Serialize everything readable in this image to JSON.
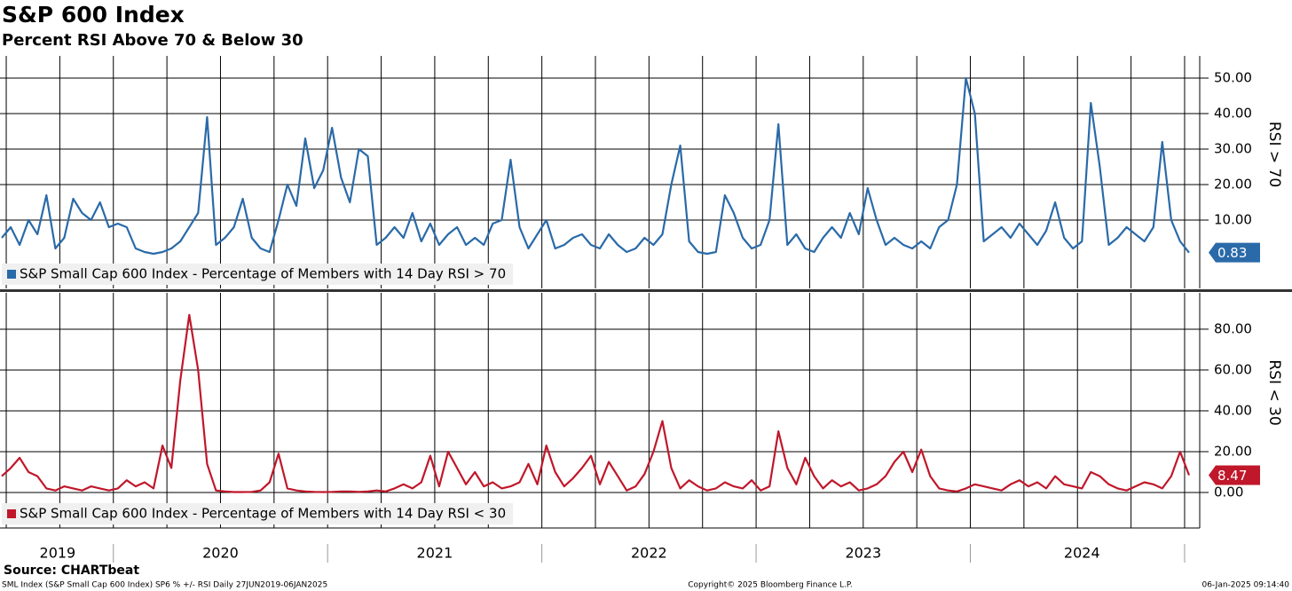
{
  "chart_data": [
    {
      "type": "line",
      "title": "S&P 600 Index",
      "subtitle": "Percent RSI Above 70 & Below 30",
      "y_label": "RSI > 70",
      "series": [
        {
          "name": "S&P Small Cap 600 Index - Percentage of Members with 14 Day RSI > 70",
          "color": "#2a6aa8",
          "values": [
            5,
            8,
            3,
            10,
            6,
            17,
            2,
            5,
            16,
            12,
            10,
            15,
            8,
            9,
            8,
            2,
            1,
            0.5,
            1,
            2,
            4,
            8,
            12,
            39,
            3,
            5,
            8,
            16,
            5,
            2,
            1,
            10,
            20,
            14,
            33,
            19,
            24,
            36,
            22,
            15,
            30,
            28,
            3,
            5,
            8,
            5,
            12,
            4,
            9,
            3,
            6,
            8,
            3,
            5,
            3,
            9,
            10,
            27,
            8,
            2,
            6,
            10,
            2,
            3,
            5,
            6,
            3,
            2,
            6,
            3,
            1,
            2,
            5,
            3,
            6,
            20,
            31,
            4,
            1,
            0.5,
            1,
            17,
            12,
            5,
            2,
            3,
            10,
            37,
            3,
            6,
            2,
            1,
            5,
            8,
            5,
            12,
            6,
            19,
            10,
            3,
            5,
            3,
            2,
            4,
            2,
            8,
            10,
            20,
            50,
            40,
            4,
            6,
            8,
            5,
            9,
            6,
            3,
            7,
            15,
            5,
            2,
            4,
            43,
            25,
            3,
            5,
            8,
            6,
            4,
            8,
            32,
            10,
            4,
            0.83
          ]
        }
      ],
      "ylim": [
        -9.25,
        56.25
      ],
      "yticks": [
        {
          "value": 10,
          "label": "10.00"
        },
        {
          "value": 20,
          "label": "20.00"
        },
        {
          "value": 30,
          "label": "30.00"
        },
        {
          "value": 40,
          "label": "40.00"
        },
        {
          "value": 50,
          "label": "50.00"
        }
      ],
      "grid": true
    },
    {
      "type": "line",
      "y_label": "RSI < 30",
      "categories": [
        "2019",
        null,
        null,
        null,
        null,
        null,
        null,
        null,
        null,
        null,
        null,
        null,
        null,
        "2020",
        null,
        null,
        null,
        null,
        null,
        null,
        null,
        null,
        null,
        null,
        null,
        null,
        null,
        null,
        null,
        null,
        null,
        null,
        null,
        null,
        null,
        null,
        null,
        "2021",
        null,
        null,
        null,
        null,
        null,
        null,
        null,
        null,
        null,
        null,
        null,
        null,
        null,
        null,
        null,
        null,
        null,
        null,
        null,
        null,
        null,
        null,
        null,
        "2022",
        null,
        null,
        null,
        null,
        null,
        null,
        null,
        null,
        null,
        null,
        null,
        null,
        null,
        null,
        null,
        null,
        null,
        null,
        null,
        null,
        null,
        null,
        null,
        "2023",
        null,
        null,
        null,
        null,
        null,
        null,
        null,
        null,
        null,
        null,
        null,
        null,
        null,
        null,
        null,
        null,
        null,
        null,
        null,
        null,
        null,
        null,
        null,
        "2024",
        null,
        null,
        null,
        null,
        null,
        null,
        null,
        null,
        null,
        null,
        null,
        null,
        null,
        null,
        null,
        null,
        null,
        null,
        null,
        null,
        null,
        null,
        null,
        null
      ],
      "series": [
        {
          "name": "S&P Small Cap 600 Index - Percentage of Members with 14 Day RSI < 30",
          "color": "#c0172a",
          "values": [
            8,
            12,
            17,
            10,
            8,
            2,
            1,
            3,
            2,
            1,
            3,
            2,
            1,
            2,
            6,
            3,
            5,
            2,
            23,
            12,
            55,
            87,
            60,
            14,
            1,
            0.5,
            0.2,
            0.2,
            0.3,
            1,
            5,
            19,
            2,
            1,
            0.5,
            0.3,
            0.2,
            0.3,
            0.5,
            0.5,
            0.3,
            0.5,
            1,
            0.5,
            2,
            4,
            2,
            5,
            18,
            3,
            20,
            12,
            4,
            10,
            3,
            5,
            2,
            3,
            5,
            14,
            4,
            23,
            10,
            3,
            7,
            12,
            18,
            4,
            15,
            8,
            1,
            3,
            9,
            20,
            35,
            12,
            2,
            6,
            3,
            1,
            2,
            5,
            3,
            2,
            6,
            1,
            3,
            30,
            12,
            4,
            17,
            8,
            2,
            6,
            3,
            5,
            1,
            2,
            4,
            8,
            15,
            20,
            10,
            21,
            8,
            2,
            1,
            0.5,
            2,
            4,
            3,
            2,
            1,
            4,
            6,
            3,
            5,
            2,
            8,
            4,
            3,
            2,
            10,
            8,
            4,
            2,
            1,
            3,
            5,
            4,
            2,
            8,
            20,
            8.47
          ]
        }
      ],
      "ylim": [
        -17.4,
        97.8
      ],
      "yticks": [
        {
          "value": 0,
          "label": "0.00"
        },
        {
          "value": 20,
          "label": "20.00"
        },
        {
          "value": 40,
          "label": "40.00"
        },
        {
          "value": 60,
          "label": "60.00"
        },
        {
          "value": 80,
          "label": "80.00"
        }
      ],
      "grid": true
    }
  ],
  "source": "Source: CHARTbeat",
  "footer": {
    "left": "SML Index (S&P Small Cap 600 Index) SP6 % +/- RSI  Daily 27JUN2019-06JAN2025",
    "center": "Copyright© 2025 Bloomberg Finance L.P.",
    "right": "06-Jan-2025 09:14:40"
  }
}
